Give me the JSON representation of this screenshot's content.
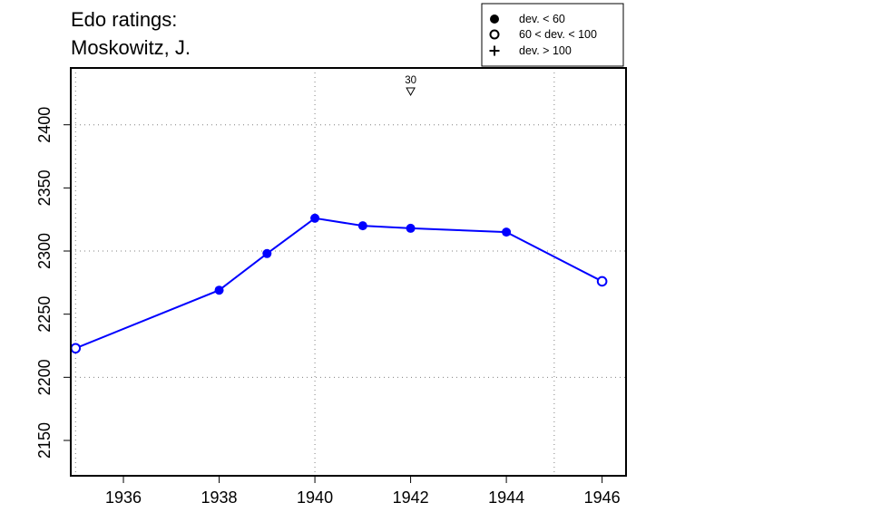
{
  "title": {
    "line1": "Edo ratings:",
    "line2": "Moskowitz, J."
  },
  "legend": {
    "items": [
      {
        "symbol": "filled-circle",
        "label": "dev. < 60"
      },
      {
        "symbol": "open-circle",
        "label": "60 < dev. < 100"
      },
      {
        "symbol": "plus",
        "label": "dev. > 100"
      }
    ]
  },
  "colors": {
    "series": "#0000ff",
    "axis": "#000000",
    "grid": "#808080"
  },
  "chart_data": {
    "type": "line",
    "title": "Edo ratings: Moskowitz, J.",
    "xlabel": "",
    "ylabel": "",
    "xlim": [
      1934.9,
      1946.5
    ],
    "ylim": [
      2122,
      2445
    ],
    "x_ticks": [
      1936,
      1938,
      1940,
      1942,
      1944,
      1946
    ],
    "y_ticks": [
      2150,
      2200,
      2250,
      2300,
      2350,
      2400
    ],
    "x_grid": [
      1935,
      1940,
      1945
    ],
    "y_grid": [
      2200,
      2300,
      2400
    ],
    "grid": true,
    "legend_position": "top-right",
    "series": [
      {
        "points": [
          {
            "x": 1935,
            "y": 2223,
            "marker": "open-circle"
          },
          {
            "x": 1938,
            "y": 2269,
            "marker": "filled-circle"
          },
          {
            "x": 1939,
            "y": 2298,
            "marker": "filled-circle"
          },
          {
            "x": 1940,
            "y": 2326,
            "marker": "filled-circle"
          },
          {
            "x": 1941,
            "y": 2320,
            "marker": "filled-circle"
          },
          {
            "x": 1942,
            "y": 2318,
            "marker": "filled-circle"
          },
          {
            "x": 1944,
            "y": 2315,
            "marker": "filled-circle"
          },
          {
            "x": 1946,
            "y": 2276,
            "marker": "open-circle"
          }
        ]
      }
    ],
    "annotations": [
      {
        "x": 1942,
        "label": "30",
        "marker": "down-triangle"
      }
    ]
  }
}
